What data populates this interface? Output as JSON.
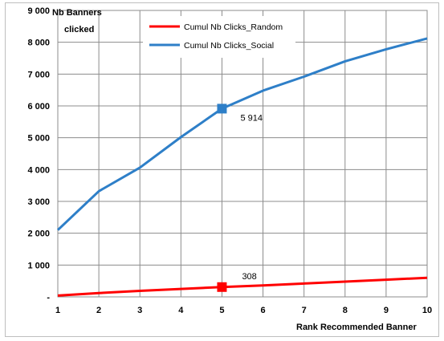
{
  "chart_data": {
    "type": "line",
    "title": "",
    "xlabel": "Rank Recommended Banner",
    "ylabel_lines": [
      "Nb Banners",
      "clicked"
    ],
    "x": [
      1,
      2,
      3,
      4,
      5,
      6,
      7,
      8,
      9,
      10
    ],
    "xlim": [
      1,
      10
    ],
    "ylim": [
      0,
      9000
    ],
    "y_ticks": [
      0,
      1000,
      2000,
      3000,
      4000,
      5000,
      6000,
      7000,
      8000,
      9000
    ],
    "y_tick_labels": [
      "-",
      "1 000",
      "2 000",
      "3 000",
      "4 000",
      "5 000",
      "6 000",
      "7 000",
      "8 000",
      "9 000"
    ],
    "x_tick_labels": [
      "1",
      "2",
      "3",
      "4",
      "5",
      "6",
      "7",
      "8",
      "9",
      "10"
    ],
    "grid": true,
    "legend_position": "top-center",
    "series": [
      {
        "name": "Cumul Nb Clicks_Random",
        "color": "#ff0000",
        "values": [
          40,
          120,
          190,
          250,
          308,
          360,
          420,
          480,
          540,
          600
        ]
      },
      {
        "name": "Cumul Nb Clicks_Social",
        "color": "#2e7fc8",
        "values": [
          2100,
          3320,
          4060,
          5020,
          5914,
          6480,
          6920,
          7400,
          7780,
          8120
        ]
      }
    ],
    "annotations": [
      {
        "series": 0,
        "x": 5,
        "y": 308,
        "text": "308"
      },
      {
        "series": 1,
        "x": 5,
        "y": 5914,
        "text": "5 914"
      }
    ]
  }
}
